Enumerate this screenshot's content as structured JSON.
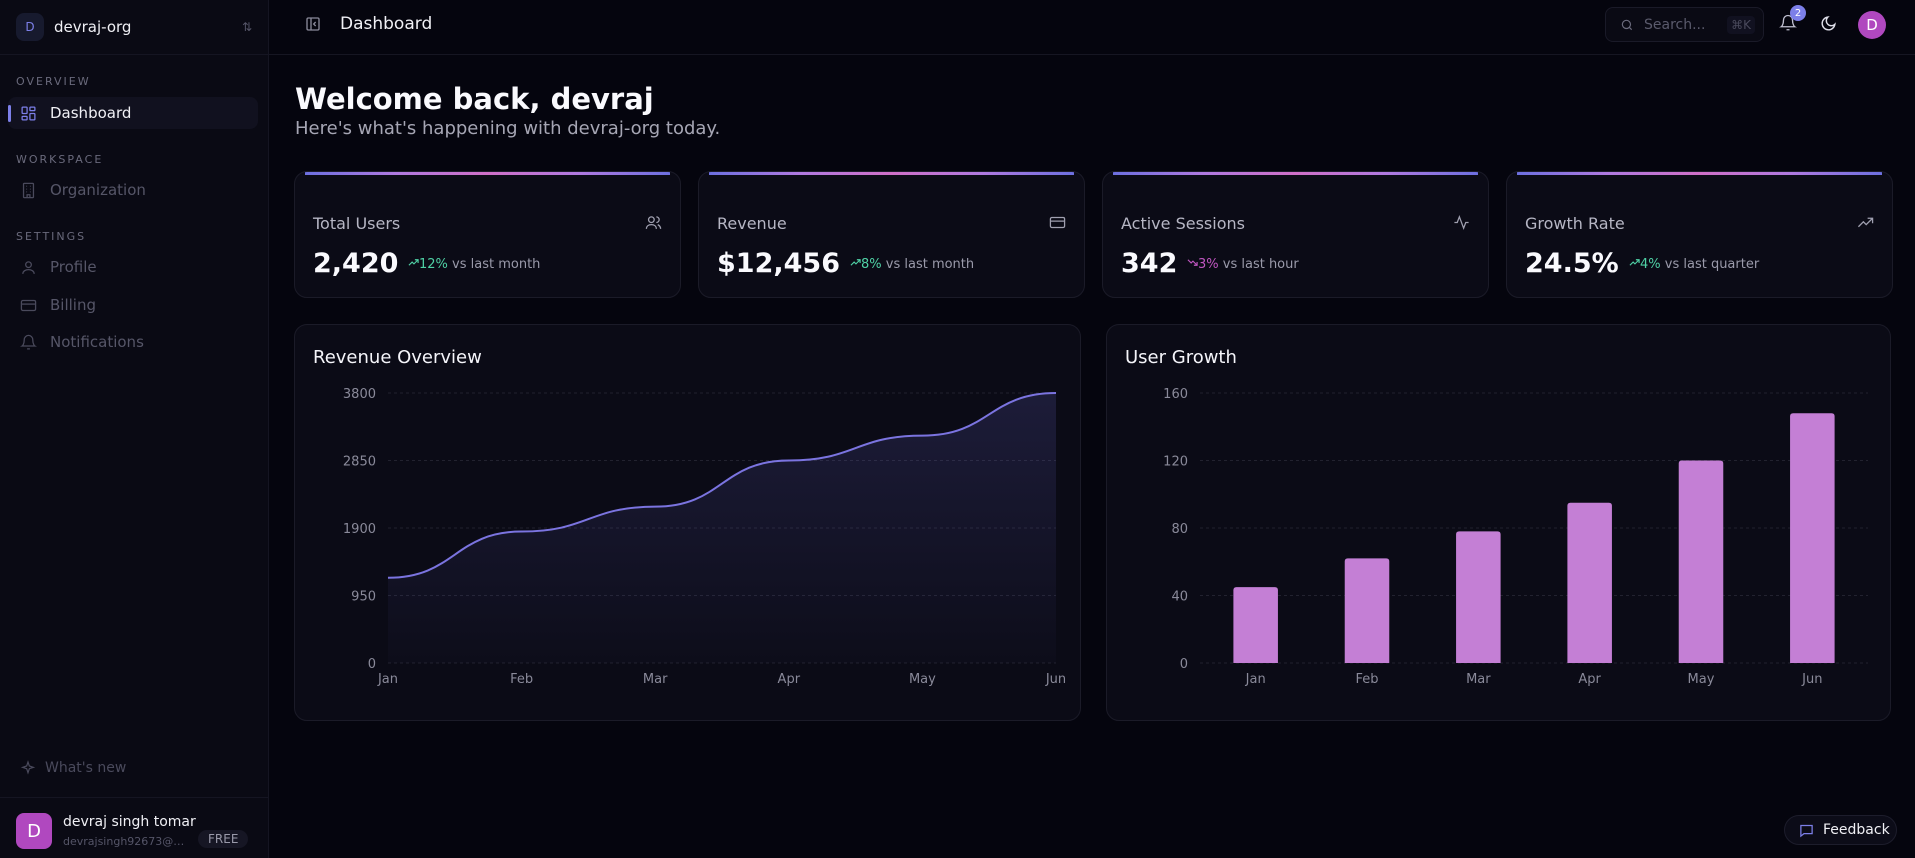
{
  "sidebar": {
    "org": {
      "initial": "D",
      "name": "devraj-org"
    },
    "sections": [
      {
        "label": "OVERVIEW",
        "items": [
          {
            "label": "Dashboard",
            "icon": "dashboard-grid-icon",
            "active": true
          }
        ]
      },
      {
        "label": "WORKSPACE",
        "items": [
          {
            "label": "Organization",
            "icon": "building-icon"
          }
        ]
      },
      {
        "label": "SETTINGS",
        "items": [
          {
            "label": "Profile",
            "icon": "user-icon"
          },
          {
            "label": "Billing",
            "icon": "credit-card-icon"
          },
          {
            "label": "Notifications",
            "icon": "bell-icon"
          }
        ]
      }
    ],
    "whats_new": "What's new",
    "user": {
      "initial": "D",
      "name": "devraj singh tomar",
      "email": "devrajsingh92673@gm...",
      "plan": "FREE"
    }
  },
  "header": {
    "title": "Dashboard",
    "search_placeholder": "Search...",
    "shortcut": "⌘K",
    "notification_count": "2",
    "avatar_initial": "D"
  },
  "main": {
    "welcome": "Welcome back, devraj",
    "subtitle": "Here's what's happening with devraj-org today.",
    "stats": [
      {
        "label": "Total Users",
        "value": "2,420",
        "change": "12%",
        "direction": "up",
        "period": "vs last month",
        "icon": "users-icon"
      },
      {
        "label": "Revenue",
        "value": "$12,456",
        "change": "8%",
        "direction": "up",
        "period": "vs last month",
        "icon": "credit-card-icon"
      },
      {
        "label": "Active Sessions",
        "value": "342",
        "change": "3%",
        "direction": "down",
        "period": "vs last hour",
        "icon": "activity-icon"
      },
      {
        "label": "Growth Rate",
        "value": "24.5%",
        "change": "4%",
        "direction": "up",
        "period": "vs last quarter",
        "icon": "trending-up-icon"
      }
    ]
  },
  "feedback_label": "Feedback",
  "colors": {
    "accent": "#7c7fe8",
    "line": "#7b74e0",
    "bar": "#c47fd5",
    "up": "#4fd1a5",
    "down": "#c056c0"
  },
  "chart_data": [
    {
      "type": "area",
      "title": "Revenue Overview",
      "categories": [
        "Jan",
        "Feb",
        "Mar",
        "Apr",
        "May",
        "Jun"
      ],
      "values": [
        1200,
        1850,
        2200,
        2850,
        3200,
        3800
      ],
      "yticks": [
        "0",
        "950",
        "1900",
        "2850",
        "3800"
      ],
      "ylim": [
        0,
        3800
      ],
      "grid": true
    },
    {
      "type": "bar",
      "title": "User Growth",
      "categories": [
        "Jan",
        "Feb",
        "Mar",
        "Apr",
        "May",
        "Jun"
      ],
      "values": [
        45,
        62,
        78,
        95,
        120,
        148
      ],
      "yticks": [
        "0",
        "40",
        "80",
        "120",
        "160"
      ],
      "ylim": [
        0,
        160
      ],
      "grid": true
    }
  ]
}
